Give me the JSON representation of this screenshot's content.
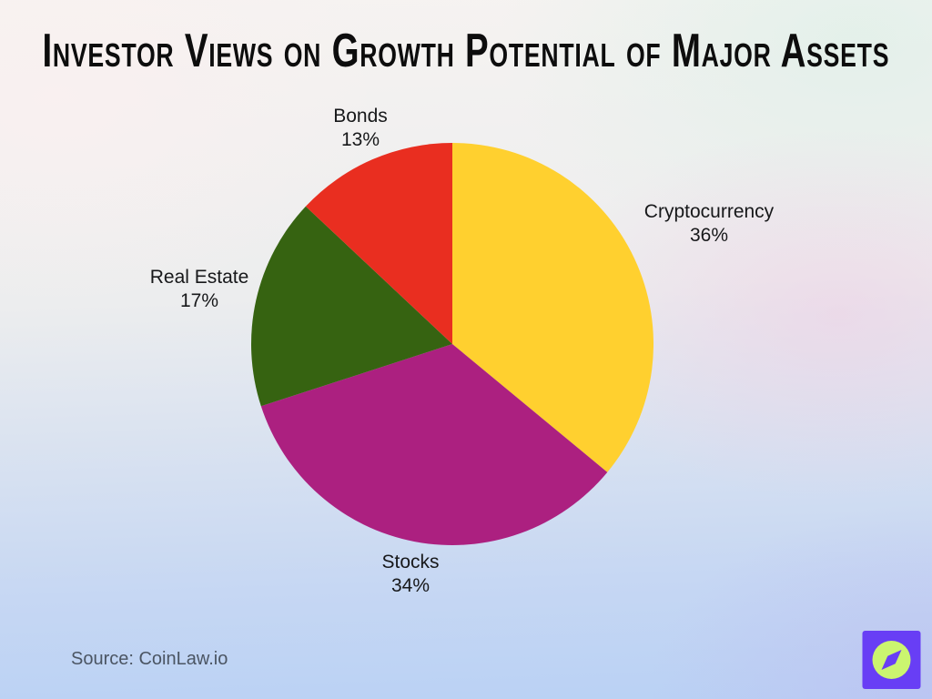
{
  "title": "Investor Views on Growth Potential of Major Assets",
  "source_text": "Source: CoinLaw.io",
  "chart_data": {
    "type": "pie",
    "title": "Investor Views on Growth Potential of Major Assets",
    "start_angle_deg": -90,
    "direction": "clockwise",
    "labels_position": "outside",
    "legend": "none",
    "segments": [
      {
        "label": "Cryptocurrency",
        "value": 36,
        "pct": "36%",
        "color": "#FFD02F"
      },
      {
        "label": "Stocks",
        "value": 34,
        "pct": "34%",
        "color": "#AC2080"
      },
      {
        "label": "Real Estate",
        "value": 17,
        "pct": "17%",
        "color": "#366311"
      },
      {
        "label": "Bonds",
        "value": 13,
        "pct": "13%",
        "color": "#E92E20"
      }
    ]
  },
  "logo": {
    "name": "coinlaw-compass-logo",
    "bg_color": "#683EF5",
    "circle_color": "#CBF56F",
    "needle_color": "#683EF5"
  }
}
